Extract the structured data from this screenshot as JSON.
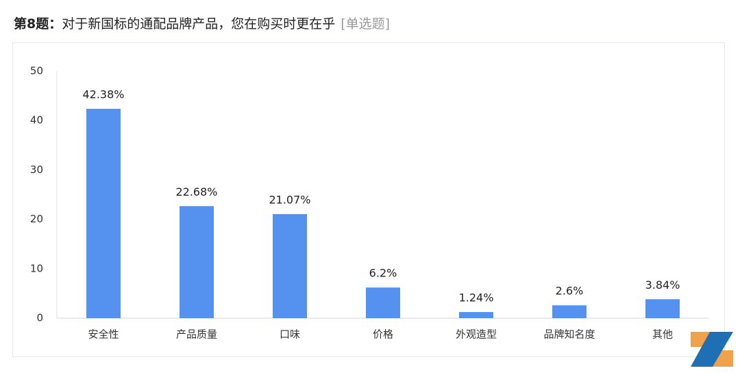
{
  "header": {
    "question_number": "第8题：",
    "question": "对于新国标的通配品牌产品，您在购买时更在乎",
    "question_type": "[单选题]"
  },
  "chart_data": {
    "type": "bar",
    "categories": [
      "安全性",
      "产品质量",
      "口味",
      "价格",
      "外观造型",
      "品牌知名度",
      "其他"
    ],
    "values": [
      42.38,
      22.68,
      21.07,
      6.2,
      1.24,
      2.6,
      3.84
    ],
    "value_labels": [
      "42.38%",
      "22.68%",
      "21.07%",
      "6.2%",
      "1.24%",
      "2.6%",
      "3.84%"
    ],
    "color": "#5592f0",
    "ylim": [
      0,
      50
    ],
    "yticks": [
      0,
      10,
      20,
      30,
      40,
      50
    ],
    "grid": false
  }
}
